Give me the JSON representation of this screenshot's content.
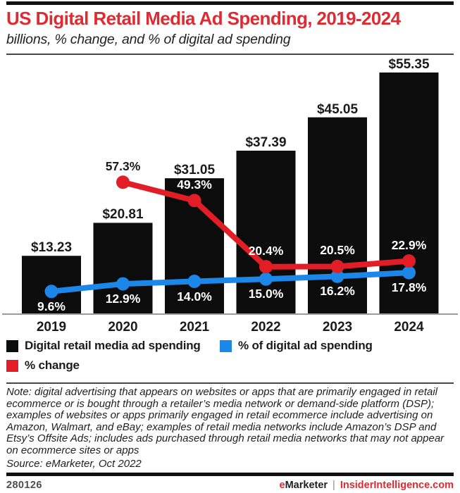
{
  "header": {
    "title": "US Digital Retail Media Ad Spending, 2019-2024",
    "subtitle": "billions, % change, and % of digital ad spending"
  },
  "chart_data": {
    "type": "bar",
    "subtype": "bar-with-lines-combo",
    "categories": [
      "2019",
      "2020",
      "2021",
      "2022",
      "2023",
      "2024"
    ],
    "series": [
      {
        "name": "Digital retail media ad spending",
        "type": "bar",
        "unit": "billions USD",
        "color": "#0c0c0c",
        "values": [
          13.23,
          20.81,
          31.05,
          37.39,
          45.05,
          55.35
        ],
        "labels": [
          "$13.23",
          "$20.81",
          "$31.05",
          "$37.39",
          "$45.05",
          "$55.35"
        ]
      },
      {
        "name": "% of digital ad spending",
        "type": "line",
        "unit": "%",
        "color": "#1b87e8",
        "label_position": "below",
        "values": [
          9.6,
          12.9,
          14.0,
          15.0,
          16.2,
          17.8
        ],
        "labels": [
          "9.6%",
          "12.9%",
          "14.0%",
          "15.0%",
          "16.2%",
          "17.8%"
        ]
      },
      {
        "name": "% change",
        "type": "line",
        "unit": "%",
        "color": "#e31d25",
        "label_position": "above",
        "values": [
          null,
          57.3,
          49.3,
          20.4,
          20.5,
          22.9
        ],
        "labels": [
          null,
          "57.3%",
          "49.3%",
          "20.4%",
          "20.5%",
          "22.9%"
        ]
      }
    ],
    "xlabel": "",
    "ylabel": "",
    "ylim_bars": [
      0,
      57
    ],
    "ylim_pct": [
      0,
      110
    ],
    "grid": false,
    "legend_position": "bottom"
  },
  "legend": {
    "items": [
      {
        "label": "Digital retail media ad spending",
        "color": "#0c0c0c"
      },
      {
        "label": "% of digital ad spending",
        "color": "#1b87e8"
      },
      {
        "label": "% change",
        "color": "#e31d25"
      }
    ]
  },
  "note": "Note: digital advertising that appears on websites or apps that are primarily engaged in retail ecommerce or is bought through a retailer’s media network or demand-side platform (DSP); examples of websites or apps primarily engaged in retail ecommerce include advertising on Amazon, Walmart, and eBay; examples of retail media networks include Amazon’s DSP and Etsy’s Offsite Ads; includes ads purchased through retail media networks that may not appear on ecommerce sites or apps",
  "source": "Source: eMarketer, Oct 2022",
  "footer": {
    "id": "280126",
    "brand_e": "e",
    "brand_rest": "Marketer",
    "separator": "|",
    "site": "InsiderIntelligence.com"
  },
  "colors": {
    "accent_red": "#df2a32",
    "bar_black": "#0c0c0c",
    "line_blue": "#1b87e8",
    "line_red": "#e31d25",
    "axis_gray": "#9b9b9b"
  }
}
